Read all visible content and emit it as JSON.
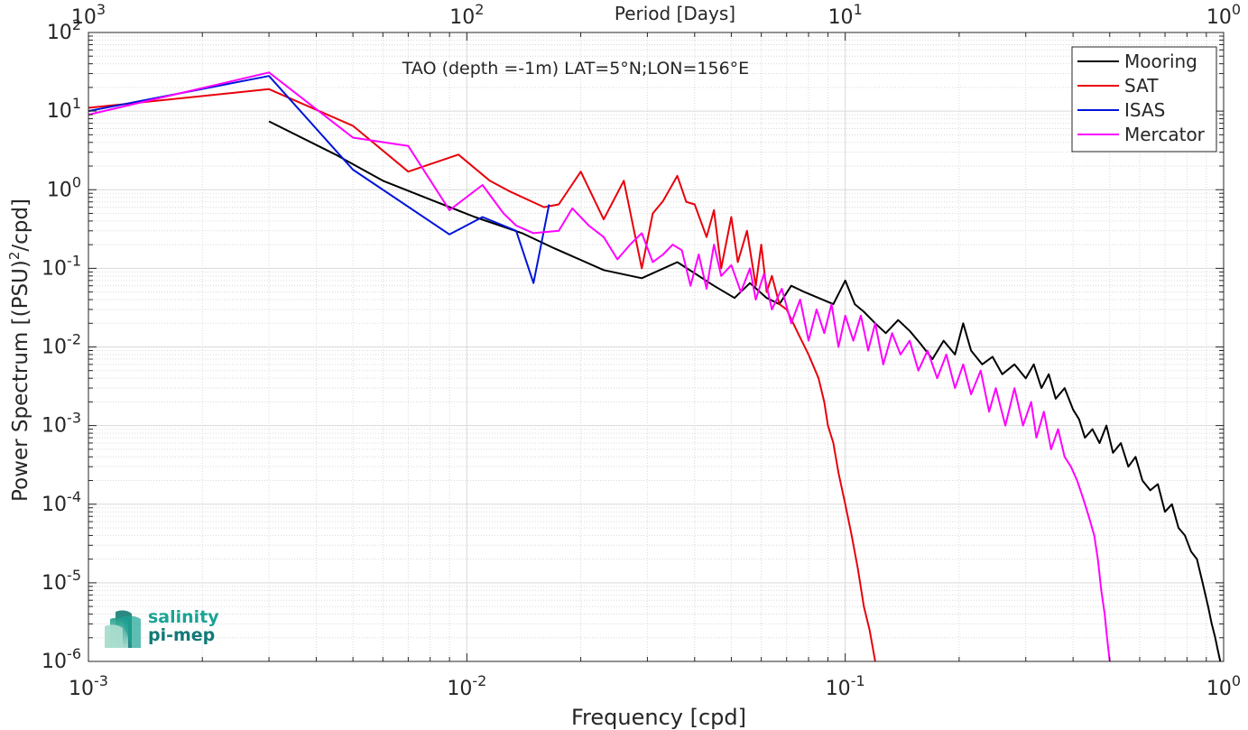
{
  "chart_data": {
    "type": "line",
    "title": "TAO (depth =-1m) LAT=5°N;LON=156°E",
    "xlabel": "Frequency [cpd]",
    "ylabel": "Power Spectrum [(PSU)²/cpd]",
    "top_xlabel": "Period [Days]",
    "xscale": "log",
    "yscale": "log",
    "xlim": [
      0.001,
      1
    ],
    "ylim": [
      1e-06,
      100
    ],
    "grid": true,
    "legend_position": "top-right",
    "x_ticks": [
      {
        "value": 0.001,
        "base": "10",
        "exp": "-3"
      },
      {
        "value": 0.01,
        "base": "10",
        "exp": "-2"
      },
      {
        "value": 0.1,
        "base": "10",
        "exp": "-1"
      },
      {
        "value": 1,
        "base": "10",
        "exp": "0"
      }
    ],
    "top_ticks": [
      {
        "value": 0.001,
        "base": "10",
        "exp": "3"
      },
      {
        "value": 0.01,
        "base": "10",
        "exp": "2"
      },
      {
        "value": 0.1,
        "base": "10",
        "exp": "1"
      },
      {
        "value": 1,
        "base": "10",
        "exp": "0"
      }
    ],
    "y_ticks": [
      {
        "value": 100,
        "base": "10",
        "exp": "2"
      },
      {
        "value": 10,
        "base": "10",
        "exp": "1"
      },
      {
        "value": 1,
        "base": "10",
        "exp": "0"
      },
      {
        "value": 0.1,
        "base": "10",
        "exp": "-1"
      },
      {
        "value": 0.01,
        "base": "10",
        "exp": "-2"
      },
      {
        "value": 0.001,
        "base": "10",
        "exp": "-3"
      },
      {
        "value": 0.0001,
        "base": "10",
        "exp": "-4"
      },
      {
        "value": 1e-05,
        "base": "10",
        "exp": "-5"
      },
      {
        "value": 1e-06,
        "base": "10",
        "exp": "-6"
      }
    ],
    "series": [
      {
        "name": "Mooring",
        "color": "#000000",
        "points": [
          [
            0.003,
            7.4
          ],
          [
            0.0045,
            2.8
          ],
          [
            0.006,
            1.3
          ],
          [
            0.008,
            0.75
          ],
          [
            0.0105,
            0.45
          ],
          [
            0.014,
            0.28
          ],
          [
            0.017,
            0.18
          ],
          [
            0.023,
            0.095
          ],
          [
            0.029,
            0.075
          ],
          [
            0.036,
            0.12
          ],
          [
            0.045,
            0.06
          ],
          [
            0.051,
            0.042
          ],
          [
            0.056,
            0.065
          ],
          [
            0.062,
            0.042
          ],
          [
            0.067,
            0.035
          ],
          [
            0.072,
            0.06
          ],
          [
            0.078,
            0.05
          ],
          [
            0.085,
            0.042
          ],
          [
            0.093,
            0.035
          ],
          [
            0.1,
            0.07
          ],
          [
            0.106,
            0.035
          ],
          [
            0.112,
            0.028
          ],
          [
            0.12,
            0.02
          ],
          [
            0.128,
            0.015
          ],
          [
            0.138,
            0.022
          ],
          [
            0.148,
            0.016
          ],
          [
            0.158,
            0.011
          ],
          [
            0.17,
            0.007
          ],
          [
            0.182,
            0.012
          ],
          [
            0.195,
            0.008
          ],
          [
            0.205,
            0.02
          ],
          [
            0.215,
            0.009
          ],
          [
            0.23,
            0.006
          ],
          [
            0.245,
            0.0075
          ],
          [
            0.26,
            0.0045
          ],
          [
            0.28,
            0.006
          ],
          [
            0.3,
            0.004
          ],
          [
            0.315,
            0.006
          ],
          [
            0.33,
            0.003
          ],
          [
            0.345,
            0.0045
          ],
          [
            0.36,
            0.0022
          ],
          [
            0.38,
            0.003
          ],
          [
            0.4,
            0.0016
          ],
          [
            0.415,
            0.0012
          ],
          [
            0.43,
            0.0007
          ],
          [
            0.45,
            0.0009
          ],
          [
            0.47,
            0.0006
          ],
          [
            0.49,
            0.001
          ],
          [
            0.51,
            0.00045
          ],
          [
            0.535,
            0.0006
          ],
          [
            0.56,
            0.0003
          ],
          [
            0.585,
            0.0004
          ],
          [
            0.61,
            0.0002
          ],
          [
            0.64,
            0.00015
          ],
          [
            0.67,
            0.00018
          ],
          [
            0.7,
            8e-05
          ],
          [
            0.73,
            0.0001
          ],
          [
            0.76,
            5e-05
          ],
          [
            0.79,
            4e-05
          ],
          [
            0.82,
            2.5e-05
          ],
          [
            0.85,
            2e-05
          ],
          [
            0.88,
            1e-05
          ],
          [
            0.91,
            5e-06
          ],
          [
            0.93,
            3e-06
          ],
          [
            0.95,
            2e-06
          ],
          [
            0.965,
            1.4e-06
          ],
          [
            0.98,
            1e-06
          ]
        ]
      },
      {
        "name": "SAT",
        "color": "#e8000b",
        "points": [
          [
            0.001,
            11
          ],
          [
            0.003,
            19
          ],
          [
            0.005,
            6.5
          ],
          [
            0.007,
            1.7
          ],
          [
            0.0095,
            2.8
          ],
          [
            0.0115,
            1.3
          ],
          [
            0.013,
            0.95
          ],
          [
            0.016,
            0.6
          ],
          [
            0.0175,
            0.65
          ],
          [
            0.02,
            1.7
          ],
          [
            0.023,
            0.42
          ],
          [
            0.026,
            1.3
          ],
          [
            0.029,
            0.1
          ],
          [
            0.031,
            0.5
          ],
          [
            0.033,
            0.72
          ],
          [
            0.036,
            1.5
          ],
          [
            0.038,
            0.7
          ],
          [
            0.04,
            0.65
          ],
          [
            0.043,
            0.25
          ],
          [
            0.045,
            0.55
          ],
          [
            0.047,
            0.1
          ],
          [
            0.05,
            0.45
          ],
          [
            0.052,
            0.12
          ],
          [
            0.055,
            0.3
          ],
          [
            0.058,
            0.06
          ],
          [
            0.06,
            0.2
          ],
          [
            0.062,
            0.05
          ],
          [
            0.064,
            0.08
          ],
          [
            0.067,
            0.035
          ],
          [
            0.07,
            0.03
          ],
          [
            0.075,
            0.015
          ],
          [
            0.08,
            0.008
          ],
          [
            0.085,
            0.004
          ],
          [
            0.088,
            0.002
          ],
          [
            0.09,
            0.001
          ],
          [
            0.093,
            0.0006
          ],
          [
            0.096,
            0.00025
          ],
          [
            0.1,
            0.0001
          ],
          [
            0.104,
            4e-05
          ],
          [
            0.108,
            1.5e-05
          ],
          [
            0.112,
            5e-06
          ],
          [
            0.116,
            2.5e-06
          ],
          [
            0.12,
            1e-06
          ]
        ]
      },
      {
        "name": "ISAS",
        "color": "#0014d9",
        "points": [
          [
            0.001,
            10
          ],
          [
            0.003,
            28
          ],
          [
            0.005,
            1.8
          ],
          [
            0.009,
            0.27
          ],
          [
            0.011,
            0.45
          ],
          [
            0.0135,
            0.3
          ],
          [
            0.015,
            0.065
          ],
          [
            0.0165,
            0.65
          ]
        ]
      },
      {
        "name": "Mercator",
        "color": "#ff00ff",
        "points": [
          [
            0.001,
            9
          ],
          [
            0.003,
            31
          ],
          [
            0.005,
            4.6
          ],
          [
            0.007,
            3.6
          ],
          [
            0.009,
            0.55
          ],
          [
            0.011,
            1.15
          ],
          [
            0.0125,
            0.5
          ],
          [
            0.0135,
            0.35
          ],
          [
            0.015,
            0.28
          ],
          [
            0.0175,
            0.3
          ],
          [
            0.019,
            0.58
          ],
          [
            0.021,
            0.35
          ],
          [
            0.023,
            0.25
          ],
          [
            0.025,
            0.13
          ],
          [
            0.027,
            0.2
          ],
          [
            0.029,
            0.28
          ],
          [
            0.031,
            0.12
          ],
          [
            0.033,
            0.15
          ],
          [
            0.035,
            0.2
          ],
          [
            0.037,
            0.17
          ],
          [
            0.039,
            0.06
          ],
          [
            0.041,
            0.15
          ],
          [
            0.043,
            0.055
          ],
          [
            0.045,
            0.2
          ],
          [
            0.047,
            0.08
          ],
          [
            0.05,
            0.11
          ],
          [
            0.053,
            0.05
          ],
          [
            0.056,
            0.1
          ],
          [
            0.058,
            0.04
          ],
          [
            0.061,
            0.085
          ],
          [
            0.064,
            0.03
          ],
          [
            0.068,
            0.055
          ],
          [
            0.072,
            0.02
          ],
          [
            0.076,
            0.04
          ],
          [
            0.08,
            0.012
          ],
          [
            0.084,
            0.03
          ],
          [
            0.088,
            0.015
          ],
          [
            0.092,
            0.035
          ],
          [
            0.096,
            0.01
          ],
          [
            0.1,
            0.025
          ],
          [
            0.105,
            0.012
          ],
          [
            0.11,
            0.025
          ],
          [
            0.115,
            0.009
          ],
          [
            0.12,
            0.02
          ],
          [
            0.126,
            0.006
          ],
          [
            0.133,
            0.015
          ],
          [
            0.14,
            0.008
          ],
          [
            0.148,
            0.012
          ],
          [
            0.156,
            0.005
          ],
          [
            0.165,
            0.009
          ],
          [
            0.175,
            0.004
          ],
          [
            0.185,
            0.008
          ],
          [
            0.195,
            0.003
          ],
          [
            0.205,
            0.006
          ],
          [
            0.215,
            0.0025
          ],
          [
            0.228,
            0.005
          ],
          [
            0.24,
            0.0015
          ],
          [
            0.25,
            0.003
          ],
          [
            0.265,
            0.001
          ],
          [
            0.28,
            0.003
          ],
          [
            0.295,
            0.001
          ],
          [
            0.31,
            0.002
          ],
          [
            0.32,
            0.0007
          ],
          [
            0.335,
            0.0015
          ],
          [
            0.35,
            0.0005
          ],
          [
            0.365,
            0.0009
          ],
          [
            0.38,
            0.0004
          ],
          [
            0.395,
            0.0003
          ],
          [
            0.41,
            0.0002
          ],
          [
            0.425,
            0.00012
          ],
          [
            0.44,
            7e-05
          ],
          [
            0.455,
            4e-05
          ],
          [
            0.465,
            2e-05
          ],
          [
            0.475,
            8e-06
          ],
          [
            0.485,
            4e-06
          ],
          [
            0.492,
            2e-06
          ],
          [
            0.5,
            1e-06
          ]
        ]
      }
    ]
  },
  "watermark": {
    "line1": "salinity",
    "line2": "pi-mep"
  }
}
